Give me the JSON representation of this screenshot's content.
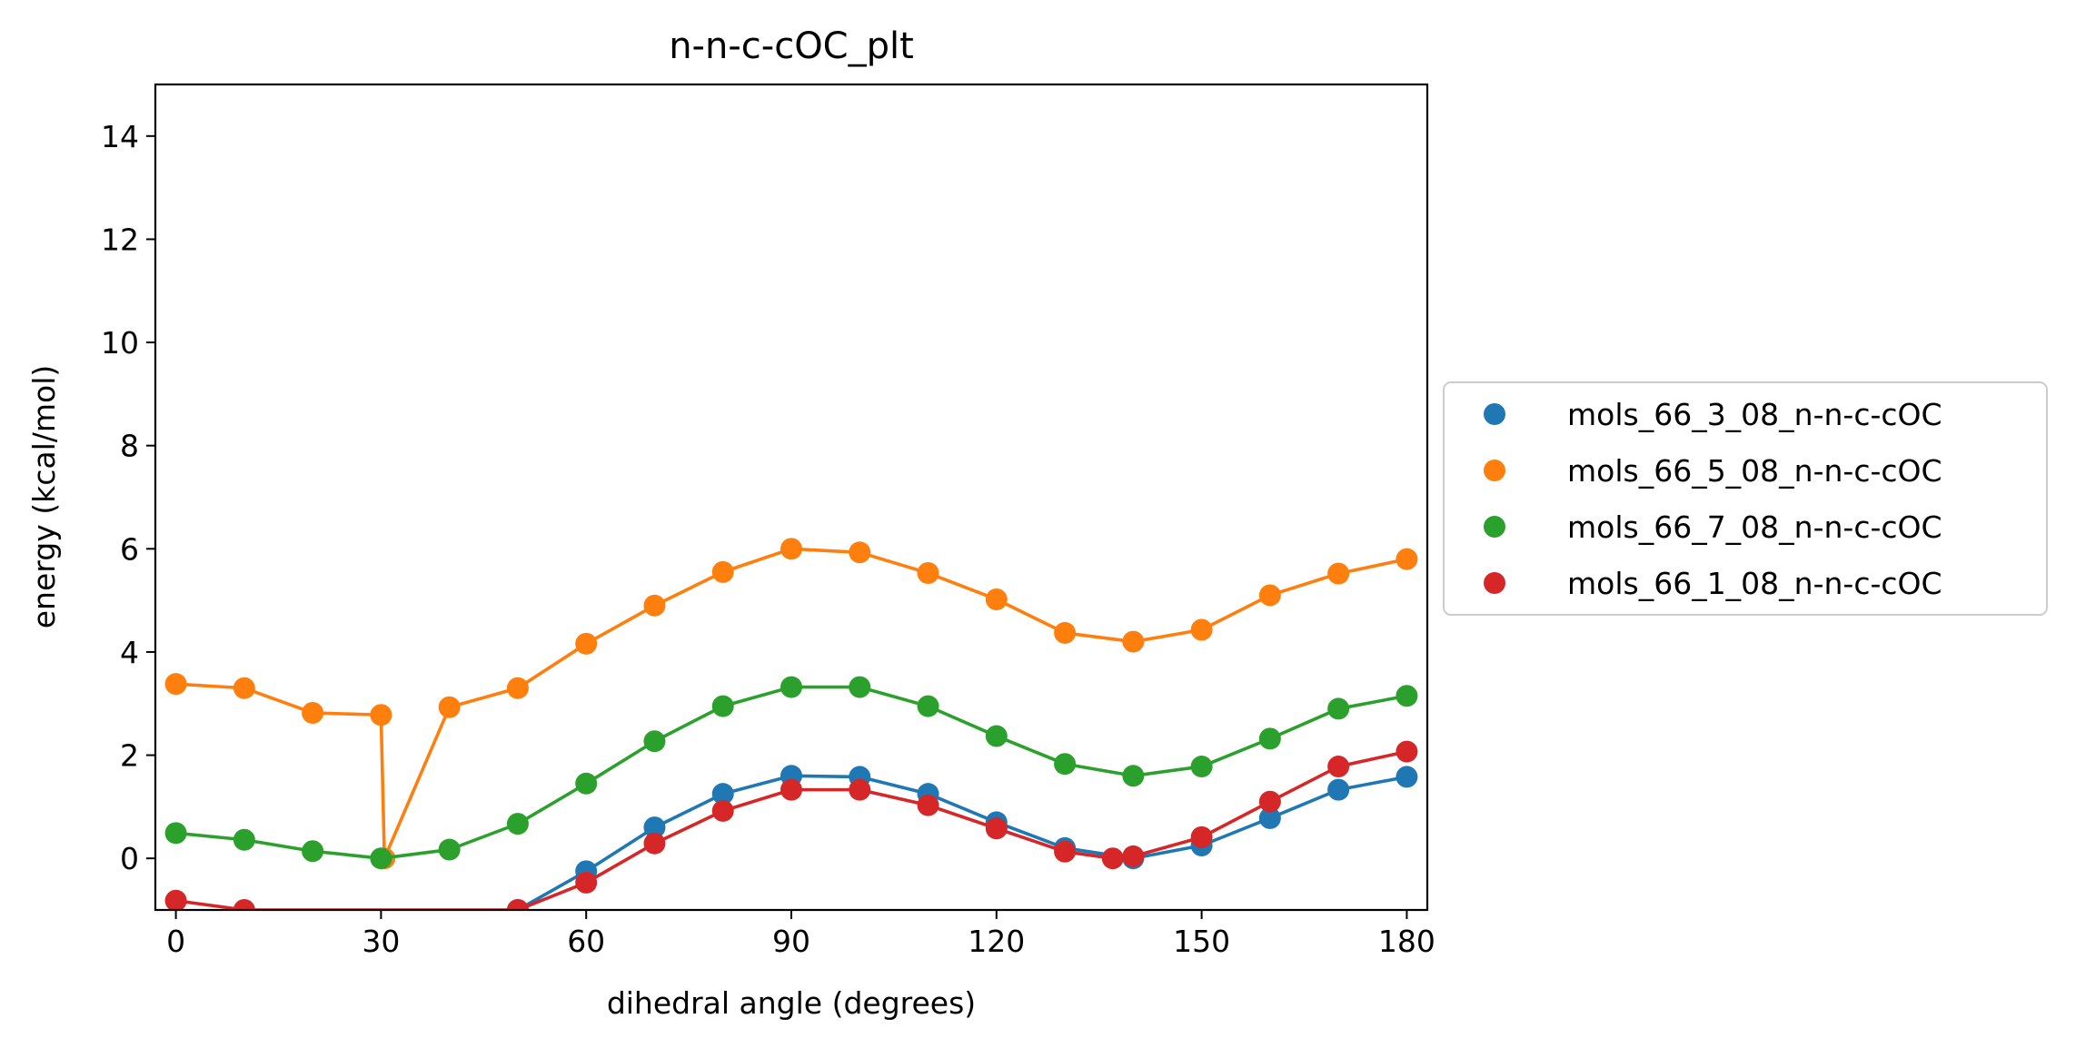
{
  "chart_data": {
    "type": "line",
    "title": "n-n-c-cOC_plt",
    "xlabel": "dihedral angle (degrees)",
    "ylabel": "energy (kcal/mol)",
    "xlim": [
      -3,
      183
    ],
    "ylim": [
      -1,
      15
    ],
    "xticks": [
      0,
      30,
      60,
      90,
      120,
      150,
      180
    ],
    "yticks": [
      0,
      2,
      4,
      6,
      8,
      10,
      12,
      14
    ],
    "grid": false,
    "legend_position": "center-right outside",
    "series": [
      {
        "name": "mols_66_3_08_n-n-c-cOC",
        "color": "#1f77b4",
        "x": [
          50,
          60,
          70,
          80,
          90,
          100,
          110,
          120,
          130,
          140,
          150,
          160,
          170,
          180
        ],
        "y": [
          -1.0,
          -0.25,
          0.6,
          1.25,
          1.6,
          1.58,
          1.25,
          0.7,
          0.2,
          0.0,
          0.25,
          0.78,
          1.33,
          1.58
        ]
      },
      {
        "name": "mols_66_5_08_n-n-c-cOC",
        "color": "#ff7f0e",
        "x": [
          0,
          10,
          20,
          30,
          30.5,
          40,
          50,
          60,
          70,
          80,
          90,
          100,
          110,
          120,
          130,
          140,
          150,
          160,
          170,
          180
        ],
        "y": [
          3.38,
          3.3,
          2.82,
          2.78,
          0.0,
          2.93,
          3.3,
          4.16,
          4.9,
          5.55,
          6.0,
          5.93,
          5.53,
          5.02,
          4.37,
          4.2,
          4.43,
          5.1,
          5.52,
          5.8
        ]
      },
      {
        "name": "mols_66_7_08_n-n-c-cOC",
        "color": "#2ca02c",
        "x": [
          0,
          10,
          20,
          30,
          40,
          50,
          60,
          70,
          80,
          90,
          100,
          110,
          120,
          130,
          140,
          150,
          160,
          170,
          180
        ],
        "y": [
          0.49,
          0.36,
          0.14,
          0.0,
          0.17,
          0.67,
          1.45,
          2.27,
          2.95,
          3.32,
          3.32,
          2.95,
          2.37,
          1.83,
          1.6,
          1.78,
          2.32,
          2.9,
          3.15
        ]
      },
      {
        "name": "mols_66_1_08_n-n-c-cOC",
        "color": "#d62728",
        "x": [
          0,
          10,
          50,
          60,
          70,
          80,
          90,
          100,
          110,
          120,
          130,
          137,
          140,
          150,
          160,
          170,
          180
        ],
        "y": [
          -0.82,
          -1.0,
          -1.0,
          -0.47,
          0.29,
          0.92,
          1.33,
          1.33,
          1.03,
          0.58,
          0.13,
          0.0,
          0.04,
          0.41,
          1.1,
          1.78,
          2.07
        ]
      }
    ]
  }
}
